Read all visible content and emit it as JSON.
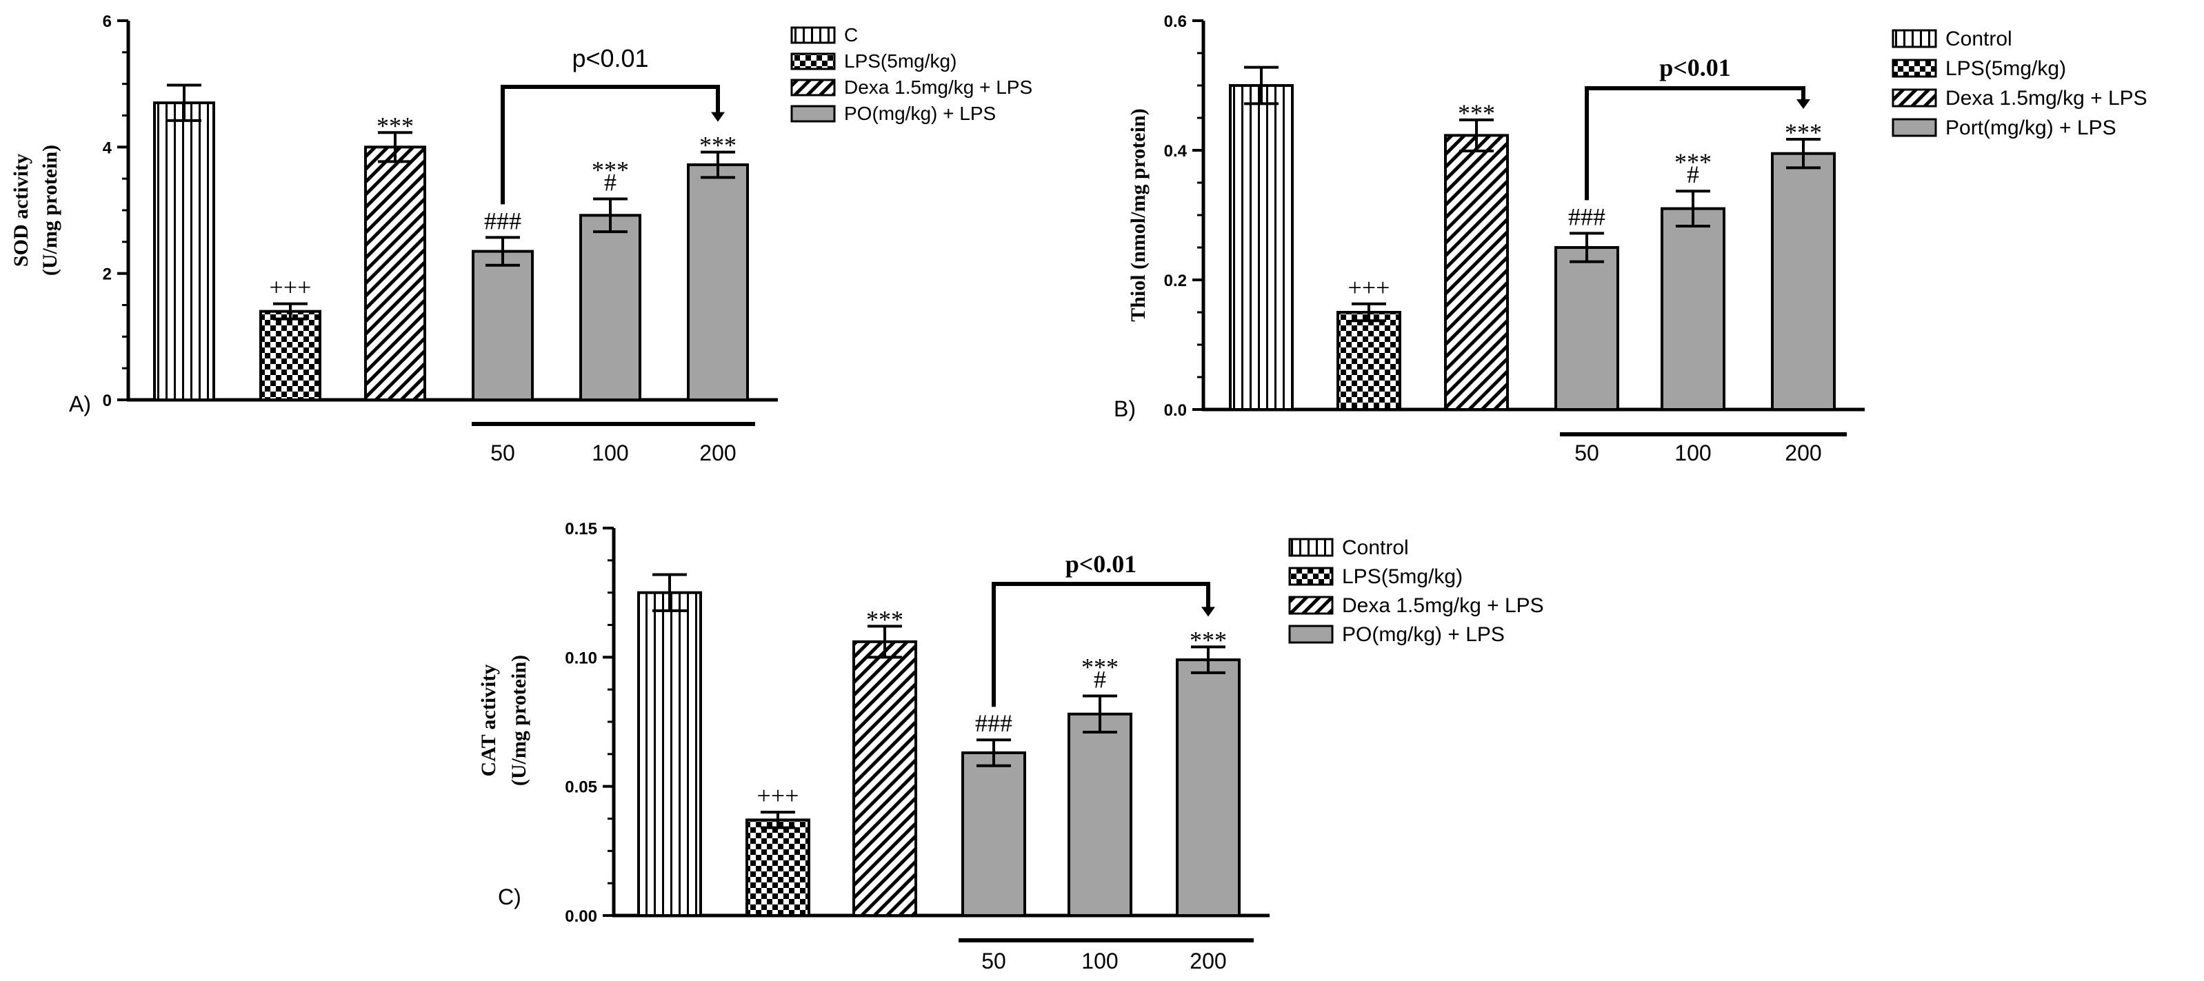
{
  "colors": {
    "axis": "#000000",
    "bar_gray": "#a3a3a4",
    "pattern_fill": "#ffffff"
  },
  "chart_data": [
    {
      "id": "A",
      "type": "bar",
      "panel_label": "A)",
      "ylabel_lines": [
        "SOD activity",
        "(U/mg protein)"
      ],
      "ylim": [
        0,
        6
      ],
      "yticks": [
        0,
        2,
        4,
        6
      ],
      "ytick_labels": [
        "0",
        "2",
        "4",
        "6"
      ],
      "categories": [
        "C",
        "LPS(5mg/kg)",
        "Dexa 1.5mg/kg + LPS",
        "PO 50",
        "PO 100",
        "PO 200"
      ],
      "values": [
        4.7,
        1.4,
        4.0,
        2.35,
        2.92,
        3.72
      ],
      "errors": [
        0.28,
        0.12,
        0.23,
        0.22,
        0.26,
        0.2
      ],
      "patterns": [
        "vlines",
        "checker",
        "diag",
        "solid",
        "solid",
        "solid"
      ],
      "annotations": [
        [],
        [
          "+++"
        ],
        [
          "***"
        ],
        [
          "###"
        ],
        [
          "***",
          "#"
        ],
        [
          "***"
        ]
      ],
      "dose_labels": [
        "50",
        "100",
        "200"
      ],
      "pvalue_text": "p<0.01",
      "legend": [
        "C",
        "LPS(5mg/kg)",
        "Dexa 1.5mg/kg + LPS",
        "PO(mg/kg) + LPS"
      ]
    },
    {
      "id": "B",
      "type": "bar",
      "panel_label": "B)",
      "ylabel_lines": [
        "Thiol (nmol/mg protein)"
      ],
      "ylim": [
        0,
        0.6
      ],
      "yticks": [
        0,
        0.2,
        0.4,
        0.6
      ],
      "ytick_labels": [
        "0.0",
        "0.2",
        "0.4",
        "0.6"
      ],
      "categories": [
        "Control",
        "LPS(5mg/kg)",
        "Dexa 1.5mg/kg + LPS",
        "Port 50",
        "Port 100",
        "Port 200"
      ],
      "values": [
        0.5,
        0.15,
        0.423,
        0.25,
        0.31,
        0.395
      ],
      "errors": [
        0.028,
        0.013,
        0.024,
        0.022,
        0.027,
        0.022
      ],
      "patterns": [
        "vlines",
        "checker",
        "diag",
        "solid",
        "solid",
        "solid"
      ],
      "annotations": [
        [],
        [
          "+++"
        ],
        [
          "***"
        ],
        [
          "###"
        ],
        [
          "***",
          "#"
        ],
        [
          "***"
        ]
      ],
      "dose_labels": [
        "50",
        "100",
        "200"
      ],
      "pvalue_text": "p<0.01",
      "legend": [
        "Control",
        "LPS(5mg/kg)",
        "Dexa 1.5mg/kg + LPS",
        "Port(mg/kg) + LPS"
      ]
    },
    {
      "id": "C",
      "type": "bar",
      "panel_label": "C)",
      "ylabel_lines": [
        "CAT activity",
        "(U/mg protein)"
      ],
      "ylim": [
        0,
        0.15
      ],
      "yticks": [
        0,
        0.05,
        0.1,
        0.15
      ],
      "ytick_labels": [
        "0.00",
        "0.05",
        "0.10",
        "0.15"
      ],
      "categories": [
        "Control",
        "LPS(5mg/kg)",
        "Dexa 1.5mg/kg + LPS",
        "PO 50",
        "PO 100",
        "PO 200"
      ],
      "values": [
        0.125,
        0.037,
        0.106,
        0.063,
        0.078,
        0.099
      ],
      "errors": [
        0.007,
        0.003,
        0.006,
        0.005,
        0.007,
        0.005
      ],
      "patterns": [
        "vlines",
        "checker",
        "diag",
        "solid",
        "solid",
        "solid"
      ],
      "annotations": [
        [],
        [
          "+++"
        ],
        [
          "***"
        ],
        [
          "###"
        ],
        [
          "***",
          "#"
        ],
        [
          "***"
        ]
      ],
      "dose_labels": [
        "50",
        "100",
        "200"
      ],
      "pvalue_text": "p<0.01",
      "legend": [
        "Control",
        "LPS(5mg/kg)",
        "Dexa 1.5mg/kg + LPS",
        "PO(mg/kg) + LPS"
      ]
    }
  ]
}
